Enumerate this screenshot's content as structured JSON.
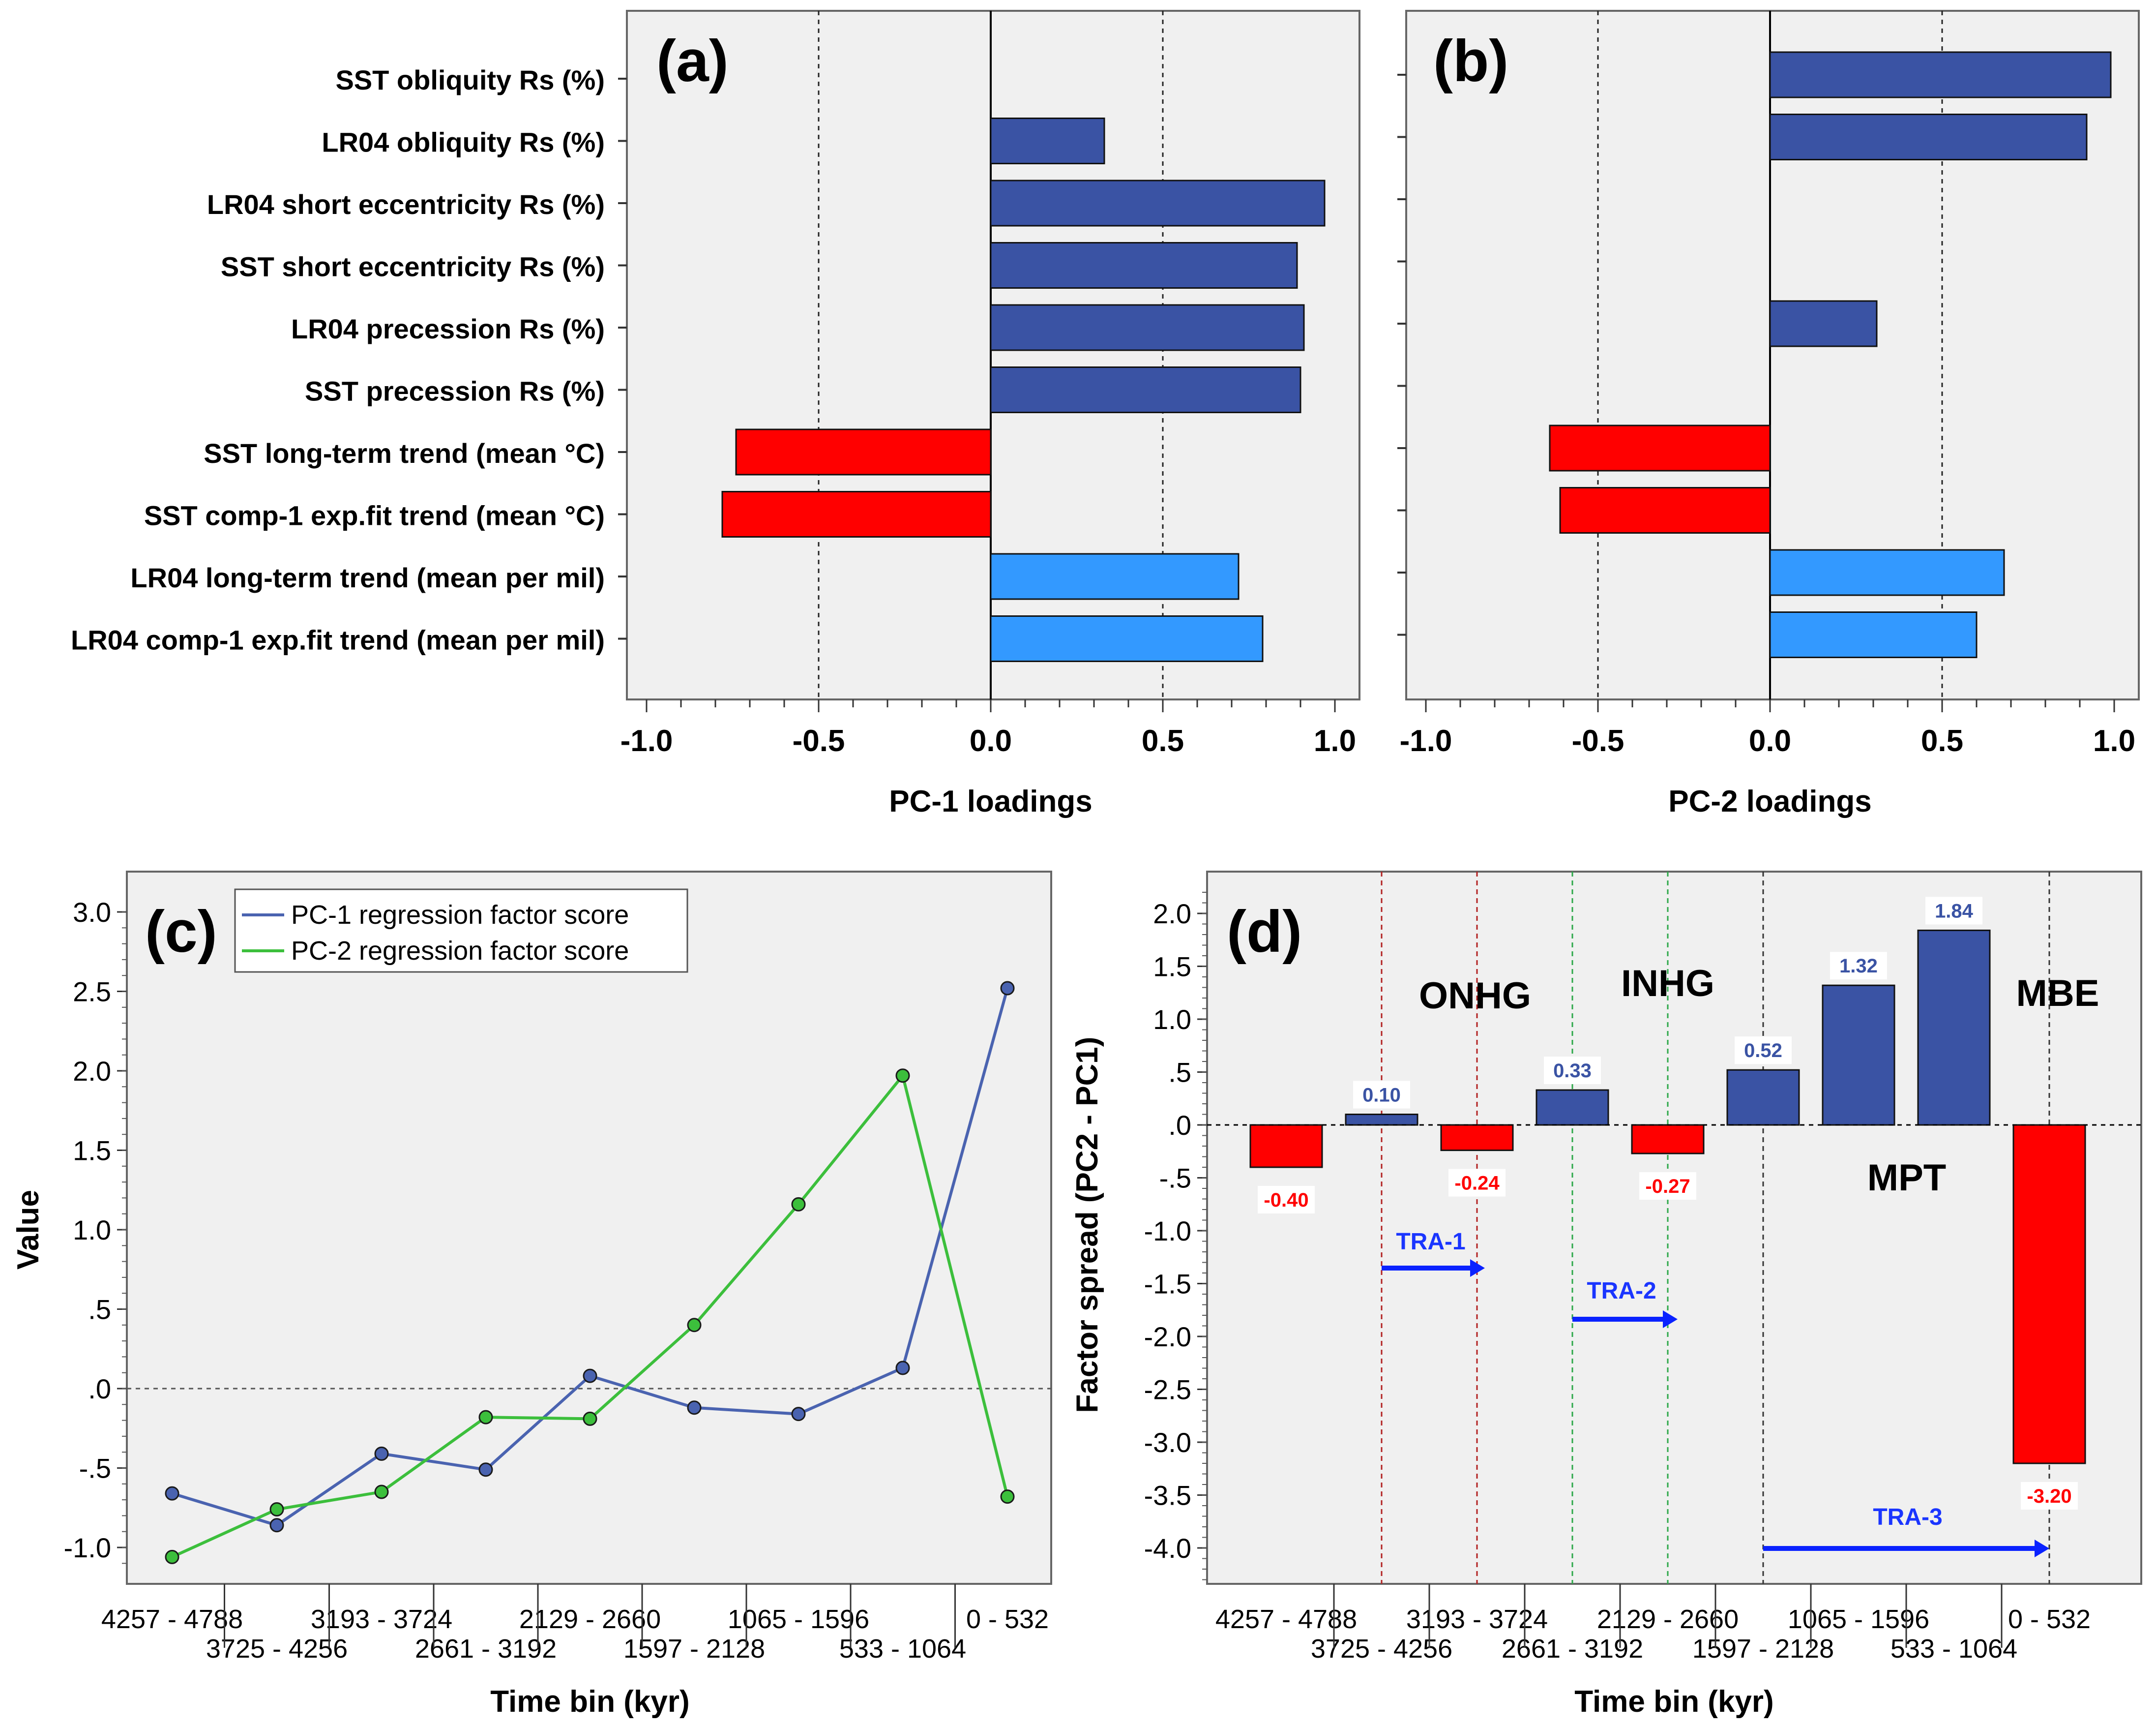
{
  "chart_data": [
    {
      "panel": "(a)",
      "type": "bar",
      "orientation": "horizontal",
      "xlabel": "PC-1 loadings",
      "xlim": [
        -1.0,
        1.0
      ],
      "xticks": [
        "-1.0",
        "-0.5",
        "0.0",
        "0.5",
        "1.0"
      ],
      "reference_lines": [
        -0.5,
        0.5
      ],
      "categories": [
        "SST obliquity Rs (%)",
        "LR04 obliquity Rs (%)",
        "LR04 short eccentricity Rs (%)",
        "SST short eccentricity Rs (%)",
        "LR04 precession Rs (%)",
        "SST precession Rs (%)",
        "SST long-term trend (mean °C)",
        "SST comp-1 exp.fit trend (mean °C)",
        "LR04 long-term trend (mean per mil)",
        "LR04 comp-1 exp.fit trend (mean per mil)"
      ],
      "values": [
        0.0,
        0.33,
        0.97,
        0.89,
        0.91,
        0.9,
        -0.74,
        -0.78,
        0.72,
        0.79
      ],
      "colors": [
        "#3a53a4",
        "#3a53a4",
        "#3a53a4",
        "#3a53a4",
        "#3a53a4",
        "#3a53a4",
        "#ff0000",
        "#ff0000",
        "#3399ff",
        "#3399ff"
      ]
    },
    {
      "panel": "(b)",
      "type": "bar",
      "orientation": "horizontal",
      "xlabel": "PC-2 loadings",
      "xlim": [
        -1.0,
        1.0
      ],
      "xticks": [
        "-1.0",
        "-0.5",
        "0.0",
        "0.5",
        "1.0"
      ],
      "reference_lines": [
        -0.5,
        0.5
      ],
      "values": [
        0.99,
        0.92,
        0.0,
        0.0,
        0.31,
        0.0,
        -0.64,
        -0.61,
        0.68,
        0.6
      ],
      "colors": [
        "#3a53a4",
        "#3a53a4",
        "#3a53a4",
        "#3a53a4",
        "#3a53a4",
        "#3a53a4",
        "#ff0000",
        "#ff0000",
        "#3399ff",
        "#3399ff"
      ]
    },
    {
      "panel": "(c)",
      "type": "line",
      "ylabel": "Value",
      "xlabel": "Time bin (kyr)",
      "ylim": [
        -1.1,
        3.1
      ],
      "yticks": [
        {
          "v": 3.0,
          "t": "3.0"
        },
        {
          "v": 2.5,
          "t": "2.5"
        },
        {
          "v": 2.0,
          "t": "2.0"
        },
        {
          "v": 1.5,
          "t": "1.5"
        },
        {
          "v": 1.0,
          "t": "1.0"
        },
        {
          "v": 0.5,
          "t": ".5"
        },
        {
          "v": 0.0,
          "t": ".0"
        },
        {
          "v": -0.5,
          "t": "-.5"
        },
        {
          "v": -1.0,
          "t": "-1.0"
        }
      ],
      "categories": [
        "4257 - 4788",
        "3725 - 4256",
        "3193 - 3724",
        "2661 - 3192",
        "2129 - 2660",
        "1597 - 2128",
        "1065 - 1596",
        "533 - 1064",
        "0 - 532"
      ],
      "series": [
        {
          "name": "PC-1 regression factor score",
          "color": "#4a63b0",
          "values": [
            -0.66,
            -0.86,
            -0.41,
            -0.51,
            0.08,
            -0.12,
            -0.16,
            0.13,
            2.52
          ]
        },
        {
          "name": "PC-2 regression factor score",
          "color": "#3cbf3c",
          "values": [
            -1.06,
            -0.76,
            -0.65,
            -0.18,
            -0.19,
            0.4,
            1.16,
            1.97,
            -0.68
          ]
        }
      ]
    },
    {
      "panel": "(d)",
      "type": "bar",
      "ylabel": "Factor spread (PC2 - PC1)",
      "xlabel": "Time bin (kyr)",
      "ylim": [
        -4.4,
        2.3
      ],
      "yticks": [
        {
          "v": 2.0,
          "t": "2.0"
        },
        {
          "v": 1.5,
          "t": "1.5"
        },
        {
          "v": 1.0,
          "t": "1.0"
        },
        {
          "v": 0.5,
          "t": ".5"
        },
        {
          "v": 0.0,
          "t": ".0"
        },
        {
          "v": -0.5,
          "t": "-.5"
        },
        {
          "v": -1.0,
          "t": "-1.0"
        },
        {
          "v": -1.5,
          "t": "-1.5"
        },
        {
          "v": -2.0,
          "t": "-2.0"
        },
        {
          "v": -2.5,
          "t": "-2.5"
        },
        {
          "v": -3.0,
          "t": "-3.0"
        },
        {
          "v": -3.5,
          "t": "-3.5"
        },
        {
          "v": -4.0,
          "t": "-4.0"
        }
      ],
      "categories": [
        "4257 - 4788",
        "3725 - 4256",
        "3193 - 3724",
        "2661 - 3192",
        "2129 - 2660",
        "1597 - 2128",
        "1065 - 1596",
        "533 - 1064",
        "0 - 532"
      ],
      "values": [
        -0.4,
        0.1,
        -0.24,
        0.33,
        -0.27,
        0.52,
        1.32,
        1.84,
        -3.2
      ],
      "value_labels": [
        "-0.40",
        "0.10",
        "-0.24",
        "0.33",
        "-0.27",
        "0.52",
        "1.32",
        "1.84",
        "-3.20"
      ],
      "positive_color": "#3a53a4",
      "negative_color": "#ff0000",
      "annotations": [
        "ONHG",
        "INHG",
        "MBE",
        "MPT"
      ],
      "arrows": [
        "TRA-1",
        "TRA-2",
        "TRA-3"
      ]
    }
  ]
}
